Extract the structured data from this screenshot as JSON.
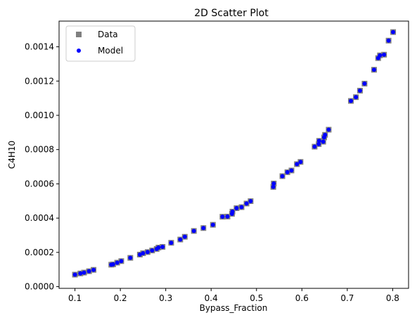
{
  "chart_data": {
    "type": "scatter",
    "title": "2D Scatter Plot",
    "xlabel": "Bypass_Fraction",
    "ylabel": "C4H10",
    "xlim": [
      0.065,
      0.835
    ],
    "ylim": [
      -1e-05,
      0.00155
    ],
    "grid": false,
    "legend_position": "top-left",
    "x_ticks": [
      0.1,
      0.2,
      0.3,
      0.4,
      0.5,
      0.6,
      0.7,
      0.8
    ],
    "x_tick_labels": [
      "0.1",
      "0.2",
      "0.3",
      "0.4",
      "0.5",
      "0.6",
      "0.7",
      "0.8"
    ],
    "y_ticks": [
      0.0,
      0.0002,
      0.0004,
      0.0006,
      0.0008,
      0.001,
      0.0012,
      0.0014
    ],
    "y_tick_labels": [
      "0.0000",
      "0.0002",
      "0.0004",
      "0.0006",
      "0.0008",
      "0.0010",
      "0.0012",
      "0.0014"
    ],
    "x": [
      0.1,
      0.112,
      0.12,
      0.131,
      0.141,
      0.18,
      0.184,
      0.193,
      0.202,
      0.222,
      0.243,
      0.25,
      0.26,
      0.27,
      0.28,
      0.284,
      0.293,
      0.312,
      0.332,
      0.342,
      0.362,
      0.383,
      0.404,
      0.425,
      0.436,
      0.446,
      0.447,
      0.456,
      0.467,
      0.478,
      0.487,
      0.537,
      0.538,
      0.557,
      0.568,
      0.577,
      0.589,
      0.597,
      0.628,
      0.637,
      0.638,
      0.647,
      0.649,
      0.651,
      0.659,
      0.708,
      0.719,
      0.728,
      0.738,
      0.759,
      0.768,
      0.772,
      0.781,
      0.791,
      0.801
    ],
    "series": [
      {
        "name": "Data",
        "marker": "square",
        "color": "#808080",
        "values": [
          7e-05,
          7.7e-05,
          8.2e-05,
          9e-05,
          9.8e-05,
          0.000128,
          0.00013,
          0.00014,
          0.000149,
          0.000168,
          0.000187,
          0.000195,
          0.000202,
          0.000211,
          0.00022,
          0.000228,
          0.000232,
          0.000256,
          0.000275,
          0.000291,
          0.000325,
          0.000342,
          0.000361,
          0.000408,
          0.000409,
          0.000425,
          0.000438,
          0.000458,
          0.000464,
          0.000485,
          0.000499,
          0.000582,
          0.000602,
          0.000645,
          0.000668,
          0.000678,
          0.000715,
          0.000728,
          0.000817,
          0.000832,
          0.000851,
          0.000846,
          0.000871,
          0.000886,
          0.000916,
          0.001084,
          0.001106,
          0.001144,
          0.001185,
          0.001266,
          0.001334,
          0.00135,
          0.001354,
          0.001436,
          0.001486
        ]
      },
      {
        "name": "Model",
        "marker": "circle",
        "color": "#0000ff",
        "values": [
          7e-05,
          7.7e-05,
          8.2e-05,
          9e-05,
          9.8e-05,
          0.000128,
          0.00013,
          0.00014,
          0.000149,
          0.000168,
          0.000187,
          0.000195,
          0.000202,
          0.000211,
          0.00022,
          0.000228,
          0.000232,
          0.000256,
          0.000275,
          0.000291,
          0.000325,
          0.000342,
          0.000361,
          0.000408,
          0.000409,
          0.000425,
          0.000438,
          0.000458,
          0.000464,
          0.000485,
          0.000499,
          0.000582,
          0.000602,
          0.000645,
          0.000668,
          0.000678,
          0.000715,
          0.000728,
          0.000817,
          0.000832,
          0.000851,
          0.000846,
          0.000871,
          0.000886,
          0.000916,
          0.001084,
          0.001106,
          0.001144,
          0.001185,
          0.001266,
          0.001334,
          0.00135,
          0.001354,
          0.001436,
          0.001486
        ]
      }
    ]
  }
}
